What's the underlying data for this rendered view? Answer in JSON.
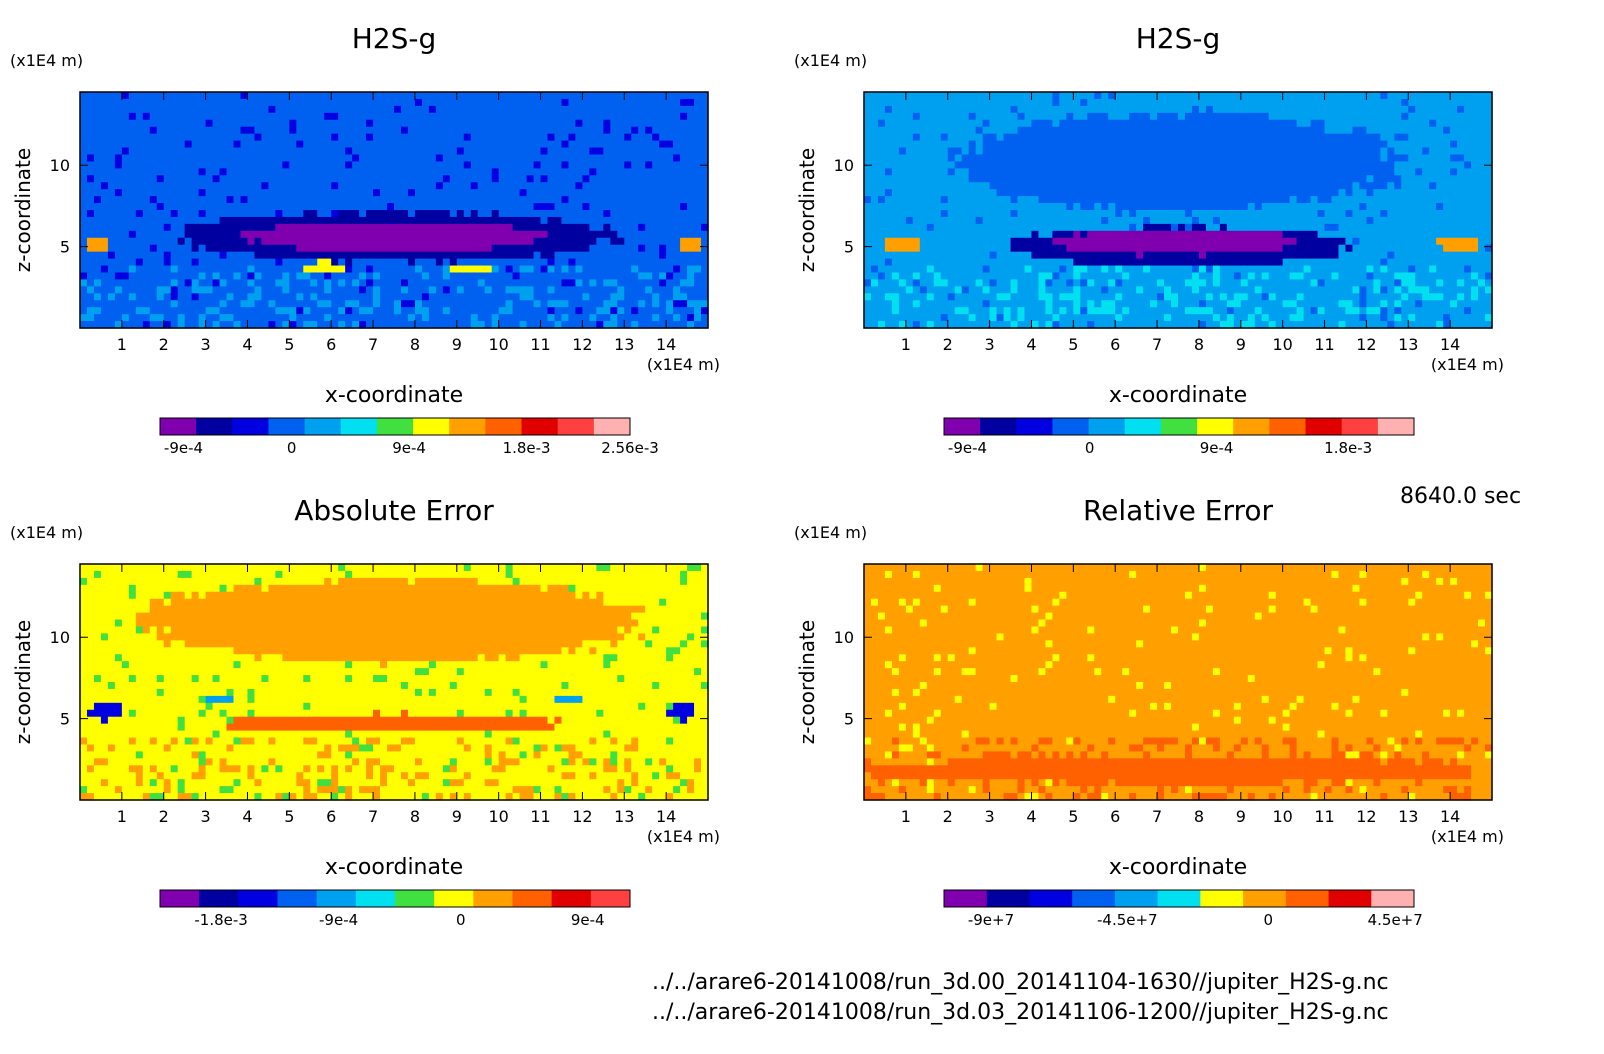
{
  "time_label": "8640.0 sec",
  "file_lines": [
    "../../arare6-20141008/run_3d.00_20141104-1630//jupiter_H2S-g.nc",
    "../../arare6-20141008/run_3d.03_20141106-1200//jupiter_H2S-g.nc"
  ],
  "chart_data": [
    {
      "type": "heatmap",
      "title": "H2S-g",
      "xlabel": "x-coordinate",
      "ylabel": "z-coordinate",
      "x_unit": "(x1E4 m)",
      "y_unit": "(x1E4 m)",
      "xlim": [
        0,
        15
      ],
      "ylim": [
        0,
        14.5
      ],
      "x_ticks": [
        1,
        2,
        3,
        4,
        5,
        6,
        7,
        8,
        9,
        10,
        11,
        12,
        13,
        14
      ],
      "y_ticks": [
        5,
        10
      ],
      "colorbar": {
        "colors": [
          "#8000b0",
          "#0000a0",
          "#0000e0",
          "#0060f0",
          "#00a0f0",
          "#00e0f0",
          "#40e040",
          "#ffff00",
          "#ffa000",
          "#ff6000",
          "#e00000",
          "#ff4040",
          "#ffb0b0"
        ],
        "tick_labels": [
          "-9e-4",
          "0",
          "9e-4",
          "1.8e-3",
          "2.56e-3"
        ],
        "tick_positions": [
          0.05,
          0.28,
          0.53,
          0.78,
          1.0
        ]
      },
      "background_level": 3,
      "features": [
        {
          "cx": 7.5,
          "cy": 10.5,
          "rx": 4.8,
          "ry": 3.2,
          "level": 3
        },
        {
          "cx": 7.5,
          "cy": 5.6,
          "rx": 5.2,
          "ry": 1.5,
          "level": 1
        },
        {
          "cx": 7.5,
          "cy": 5.6,
          "rx": 3.6,
          "ry": 0.9,
          "level": 0
        },
        {
          "cx": 5.8,
          "cy": 3.7,
          "rx": 0.5,
          "ry": 0.35,
          "level": 7
        },
        {
          "cx": 9.3,
          "cy": 3.7,
          "rx": 0.5,
          "ry": 0.35,
          "level": 7
        },
        {
          "cx": 0.4,
          "cy": 5.1,
          "rx": 0.3,
          "ry": 0.45,
          "level": 8
        },
        {
          "cx": 14.6,
          "cy": 5.1,
          "rx": 0.3,
          "ry": 0.45,
          "level": 8
        }
      ]
    },
    {
      "type": "heatmap",
      "title": "H2S-g",
      "xlabel": "x-coordinate",
      "ylabel": "z-coordinate",
      "x_unit": "(x1E4 m)",
      "y_unit": "(x1E4 m)",
      "xlim": [
        0,
        15
      ],
      "ylim": [
        0,
        14.5
      ],
      "x_ticks": [
        1,
        2,
        3,
        4,
        5,
        6,
        7,
        8,
        9,
        10,
        11,
        12,
        13,
        14
      ],
      "y_ticks": [
        5,
        10
      ],
      "colorbar": {
        "colors": [
          "#8000b0",
          "#0000a0",
          "#0000e0",
          "#0060f0",
          "#00a0f0",
          "#00e0f0",
          "#40e040",
          "#ffff00",
          "#ffa000",
          "#ff6000",
          "#e00000",
          "#ff4040",
          "#ffb0b0"
        ],
        "tick_labels": [
          "-9e-4",
          "0",
          "9e-4",
          "1.8e-3"
        ],
        "tick_positions": [
          0.05,
          0.31,
          0.58,
          0.86
        ]
      },
      "background_level": 4,
      "features": [
        {
          "cx": 7.5,
          "cy": 10.2,
          "rx": 5.2,
          "ry": 3.0,
          "level": 3
        },
        {
          "cx": 7.5,
          "cy": 5.0,
          "rx": 4.0,
          "ry": 1.2,
          "level": 1
        },
        {
          "cx": 7.5,
          "cy": 5.3,
          "rx": 3.0,
          "ry": 0.8,
          "level": 0
        },
        {
          "cx": 0.9,
          "cy": 5.2,
          "rx": 0.5,
          "ry": 0.45,
          "level": 8
        },
        {
          "cx": 14.2,
          "cy": 5.2,
          "rx": 0.5,
          "ry": 0.45,
          "level": 8
        }
      ]
    },
    {
      "type": "heatmap",
      "title": "Absolute Error",
      "xlabel": "x-coordinate",
      "ylabel": "z-coordinate",
      "x_unit": "(x1E4 m)",
      "y_unit": "(x1E4 m)",
      "xlim": [
        0,
        15
      ],
      "ylim": [
        0,
        14.5
      ],
      "x_ticks": [
        1,
        2,
        3,
        4,
        5,
        6,
        7,
        8,
        9,
        10,
        11,
        12,
        13,
        14
      ],
      "y_ticks": [
        5,
        10
      ],
      "colorbar": {
        "colors": [
          "#8000b0",
          "#0000a0",
          "#0000e0",
          "#0060f0",
          "#00a0f0",
          "#00e0f0",
          "#40e040",
          "#ffff00",
          "#ffa000",
          "#ff6000",
          "#e00000",
          "#ff4040"
        ],
        "tick_labels": [
          "-1.8e-3",
          "-9e-4",
          "0",
          "9e-4"
        ],
        "tick_positions": [
          0.13,
          0.38,
          0.64,
          0.91
        ]
      },
      "background_level": 7,
      "features": [
        {
          "cx": 7.5,
          "cy": 11,
          "rx": 6.0,
          "ry": 2.5,
          "level": 8
        },
        {
          "cx": 7.5,
          "cy": 4.7,
          "rx": 4.0,
          "ry": 0.6,
          "level": 9
        },
        {
          "cx": 0.6,
          "cy": 5.5,
          "rx": 0.35,
          "ry": 0.6,
          "level": 2
        },
        {
          "cx": 14.4,
          "cy": 5.5,
          "rx": 0.35,
          "ry": 0.6,
          "level": 2
        },
        {
          "cx": 3.3,
          "cy": 6.2,
          "rx": 0.3,
          "ry": 0.25,
          "level": 4
        },
        {
          "cx": 11.7,
          "cy": 6.2,
          "rx": 0.3,
          "ry": 0.25,
          "level": 4
        }
      ]
    },
    {
      "type": "heatmap",
      "title": "Relative Error",
      "xlabel": "x-coordinate",
      "ylabel": "z-coordinate",
      "x_unit": "(x1E4 m)",
      "y_unit": "(x1E4 m)",
      "xlim": [
        0,
        15
      ],
      "ylim": [
        0,
        14.5
      ],
      "x_ticks": [
        1,
        2,
        3,
        4,
        5,
        6,
        7,
        8,
        9,
        10,
        11,
        12,
        13,
        14
      ],
      "y_ticks": [
        5,
        10
      ],
      "colorbar": {
        "colors": [
          "#8000b0",
          "#0000a0",
          "#0000e0",
          "#0060f0",
          "#00a0f0",
          "#00e0f0",
          "#ffff00",
          "#ffa000",
          "#ff6000",
          "#e00000",
          "#ffb0b0"
        ],
        "tick_labels": [
          "-9e+7",
          "-4.5e+7",
          "0",
          "4.5e+7"
        ],
        "tick_positions": [
          0.1,
          0.39,
          0.69,
          0.96
        ]
      },
      "background_level": 7,
      "features": [
        {
          "cx": 7.5,
          "cy": 5.5,
          "rx": 3.5,
          "ry": 3.0,
          "level": 7
        },
        {
          "cx": 7.5,
          "cy": 1.8,
          "rx": 7.5,
          "ry": 0.8,
          "level": 8
        }
      ]
    }
  ]
}
